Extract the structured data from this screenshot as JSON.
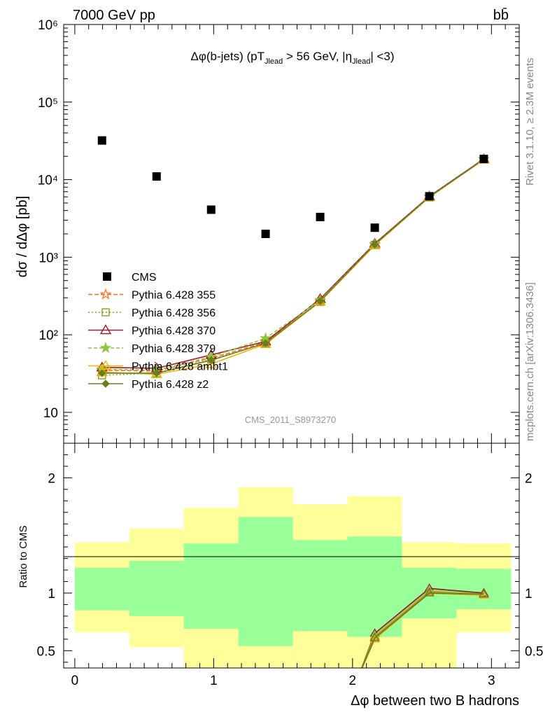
{
  "header": {
    "energy_label": "7000 GeV pp",
    "process_label": "bb̄"
  },
  "side_labels": {
    "rivet": "Rivet 3.1.10, ≥ 2.3M events",
    "mcplots": "mcplots.cern.ch [arXiv:1306.3436]"
  },
  "chart_data": [
    {
      "type": "scatter",
      "panel": "main",
      "title": "Δφ(b-jets) (pT_Jlead > 56 GeV, |η_Jlead| <3)",
      "title_parts": {
        "pre": "Δφ(b-jets) (pT",
        "sub1": "Jlead",
        "mid": " >  56 GeV, |η",
        "sub2": "Jlead",
        "post": "| <3)"
      },
      "ylabel": "dσ / dΔφ [pb]",
      "yscale": "log",
      "ylim": [
        4,
        1000000
      ],
      "xlim": [
        -0.08,
        3.2
      ],
      "y_tick_labels": [
        "10",
        "10²",
        "10³",
        "10⁴",
        "10⁵",
        "10⁶"
      ],
      "watermark": "CMS_2011_S8973270",
      "x": [
        0.196,
        0.589,
        0.982,
        1.374,
        1.767,
        2.16,
        2.553,
        2.945
      ],
      "bin_edges": [
        0,
        0.393,
        0.785,
        1.178,
        1.571,
        1.963,
        2.356,
        2.749,
        3.142
      ],
      "data": {
        "name": "CMS",
        "color": "#000000",
        "values": [
          32000,
          11000,
          4100,
          2000,
          3300,
          2400,
          6100,
          18500
        ]
      },
      "series": [
        {
          "name": "Pythia 6.428 355",
          "color": "#ff6a1a",
          "dash": "6,3",
          "marker": "star-open",
          "values": [
            35,
            34,
            50,
            80,
            270,
            1450,
            6000,
            18300
          ]
        },
        {
          "name": "Pythia 6.428 356",
          "color": "#7fa319",
          "dash": "2,3",
          "marker": "square-open",
          "values": [
            30,
            32,
            48,
            78,
            265,
            1440,
            5900,
            18200
          ]
        },
        {
          "name": "Pythia 6.428 370",
          "color": "#9b1b2a",
          "dash": "",
          "marker": "triangle-open",
          "values": [
            38,
            37,
            55,
            82,
            290,
            1500,
            6100,
            18500
          ]
        },
        {
          "name": "Pythia 6.428 379",
          "color": "#8cc63f",
          "dash": "5,3",
          "marker": "star-filled",
          "values": [
            36,
            35,
            52,
            90,
            280,
            1470,
            6000,
            18300
          ]
        },
        {
          "name": "Pythia 6.428 ambt1",
          "color": "#f0b400",
          "dash": "",
          "marker": "triangle-open",
          "values": [
            33,
            31,
            42,
            76,
            268,
            1430,
            5950,
            18100
          ]
        },
        {
          "name": "Pythia 6.428 z2",
          "color": "#6b7d1f",
          "dash": "",
          "marker": "diamond",
          "values": [
            32,
            32,
            47,
            78,
            272,
            1460,
            6000,
            18250
          ]
        }
      ]
    },
    {
      "type": "line",
      "panel": "ratio",
      "ylabel": "Ratio to CMS",
      "xlabel": "Δφ between two B hadrons",
      "ylim": [
        0.35,
        2.3
      ],
      "xlim": [
        -0.08,
        3.2
      ],
      "x_tick_labels": [
        "0",
        "1",
        "2",
        "3"
      ],
      "y_tick_labels": [
        "0.5",
        "1",
        "2"
      ],
      "bin_edges": [
        0,
        0.393,
        0.785,
        1.178,
        1.571,
        1.963,
        2.356,
        2.749,
        3.142
      ],
      "band_outer": {
        "color": "#ffff99",
        "lo": [
          0.66,
          0.53,
          0.3,
          0.3,
          0.3,
          0.3,
          0.3,
          0.66
        ],
        "hi": [
          1.44,
          1.56,
          1.74,
          1.92,
          1.77,
          1.84,
          1.44,
          1.43
        ]
      },
      "band_inner": {
        "color": "#99ff99",
        "lo": [
          0.85,
          0.8,
          0.69,
          0.54,
          0.67,
          0.62,
          0.78,
          0.86
        ],
        "hi": [
          1.22,
          1.28,
          1.43,
          1.66,
          1.46,
          1.49,
          1.22,
          1.21
        ]
      },
      "ratio_x": [
        2.05,
        2.16,
        2.553,
        2.945
      ],
      "ratio_series": [
        {
          "name": "Pythia 6.428 355",
          "color": "#ff6a1a",
          "values": [
            0.3,
            0.62,
            1.01,
            0.99
          ]
        },
        {
          "name": "Pythia 6.428 356",
          "color": "#7fa319",
          "values": [
            0.3,
            0.61,
            1.0,
            0.99
          ]
        },
        {
          "name": "Pythia 6.428 370",
          "color": "#9b1b2a",
          "values": [
            0.3,
            0.65,
            1.04,
            1.0
          ]
        },
        {
          "name": "Pythia 6.428 379",
          "color": "#8cc63f",
          "values": [
            0.3,
            0.63,
            1.02,
            0.99
          ]
        },
        {
          "name": "Pythia 6.428 ambt1",
          "color": "#f0b400",
          "values": [
            0.3,
            0.6,
            1.0,
            0.98
          ]
        },
        {
          "name": "Pythia 6.428 z2",
          "color": "#6b7d1f",
          "values": [
            0.3,
            0.61,
            1.0,
            0.99
          ]
        }
      ]
    }
  ]
}
